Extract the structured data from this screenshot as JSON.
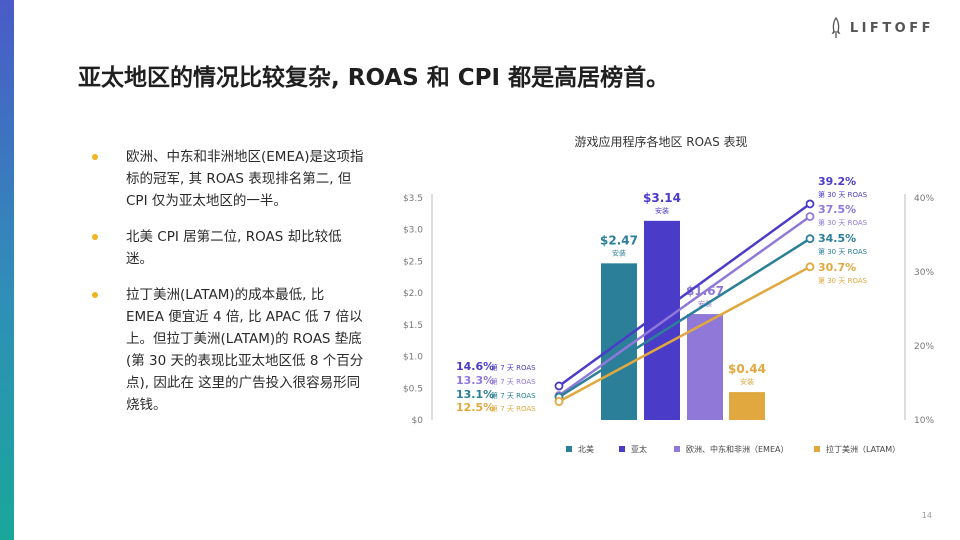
{
  "brand": {
    "name": "LIFTOFF",
    "icon": "rocket-icon"
  },
  "slide": {
    "title": "亚太地区的情况比较复杂, ROAS 和 CPI 都是高居榜首。",
    "page_number": "14"
  },
  "bullets": [
    "欧洲、中东和非洲地区(EMEA)是这项指标的冠军, 其 ROAS 表现排名第二, 但 CPI 仅为亚太地区的一半。",
    "北美 CPI 居第二位, ROAS 却比较低迷。",
    "拉丁美洲(LATAM)的成本最低, 比 EMEA 便宜近 4 倍, 比 APAC 低 7 倍以上。但拉丁美洲(LATAM)的 ROAS 垫底(第 30 天的表现比亚太地区低 8 个百分点), 因此在 这里的广告投入很容易形同烧钱。"
  ],
  "colors": {
    "bullet": "#f0b323",
    "north_america": "#2b7f98",
    "apac": "#4a3bc9",
    "emea": "#8f78d8",
    "latam": "#e0a83e"
  },
  "chart_data": {
    "type": "bar",
    "title": "游戏应用程序各地区 ROAS 表现",
    "categories": [
      "北美",
      "亚太",
      "欧洲、中东和非洲（EMEA）",
      "拉丁美洲（LATAM）"
    ],
    "bars": {
      "values": [
        2.47,
        3.14,
        1.67,
        0.44
      ],
      "labels": [
        "$2.47",
        "$3.14",
        "$1.67",
        "$0.44"
      ],
      "sublabel": "安装"
    },
    "left_axis": {
      "ylim": [
        0,
        3.5
      ],
      "ticks": [
        "$0",
        "$0.5",
        "$1.0",
        "$1.5",
        "$2.0",
        "$2.5",
        "$3.0",
        "$3.5"
      ],
      "tick_values": [
        0,
        0.5,
        1.0,
        1.5,
        2.0,
        2.5,
        3.0,
        3.5
      ]
    },
    "right_axis": {
      "ylim": [
        10,
        40
      ],
      "ticks": [
        "10%",
        "20%",
        "30%",
        "40%"
      ],
      "tick_values": [
        10,
        20,
        30,
        40
      ]
    },
    "lines": [
      {
        "name": "亚太",
        "day7": 14.6,
        "day30": 39.2,
        "day7_label": "14.6%",
        "day30_label": "39.2%"
      },
      {
        "name": "欧洲、中东和非洲（EMEA）",
        "day7": 13.3,
        "day30": 37.5,
        "day7_label": "13.3%",
        "day30_label": "37.5%"
      },
      {
        "name": "北美",
        "day7": 13.1,
        "day30": 34.5,
        "day7_label": "13.1%",
        "day30_label": "34.5%"
      },
      {
        "name": "拉丁美洲（LATAM）",
        "day7": 12.5,
        "day30": 30.7,
        "day7_label": "12.5%",
        "day30_label": "30.7%"
      }
    ],
    "day7_suffix": "第 7 天 ROAS",
    "day30_suffix": "第 30 天 ROAS",
    "legend": [
      "北美",
      "亚太",
      "欧洲、中东和非洲（EMEA）",
      "拉丁美洲（LATAM）"
    ],
    "legend_position": "bottom",
    "grid": false
  }
}
